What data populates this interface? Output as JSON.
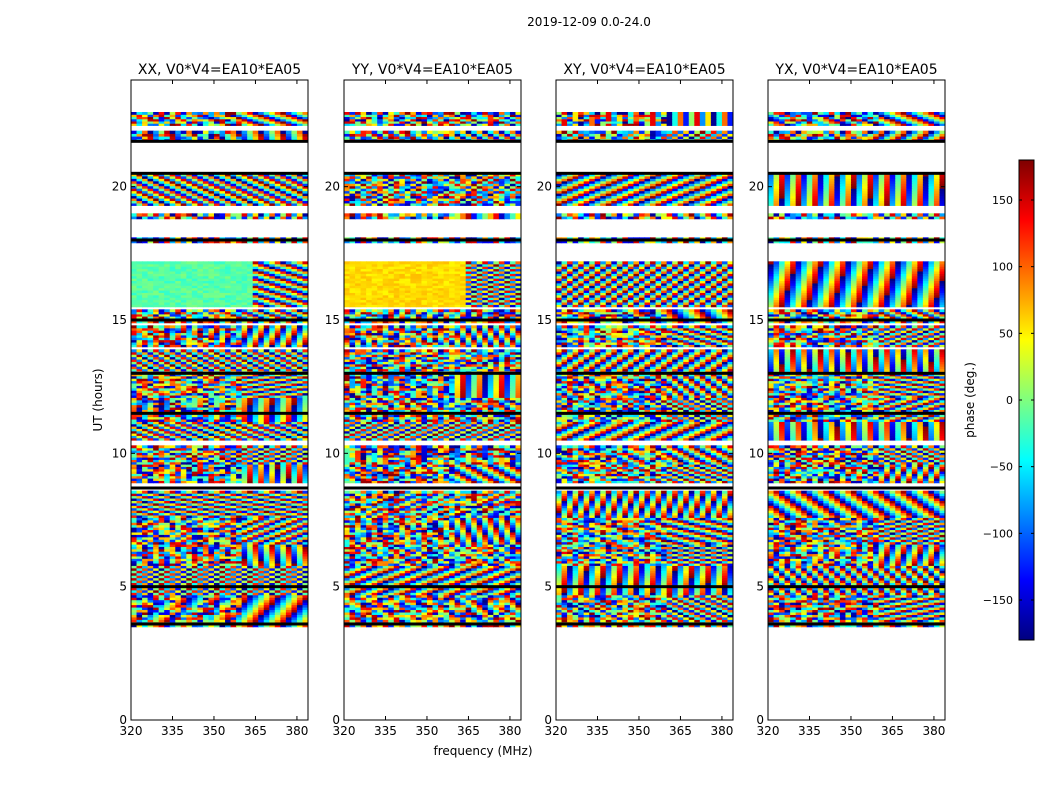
{
  "figure": {
    "suptitle": "2019-12-09 0.0-24.0",
    "xlabel": "frequency (MHz)",
    "ylabel": "UT (hours)",
    "colorbar_label": "phase (deg.)",
    "colorbar_ticks": [
      150,
      100,
      50,
      0,
      -50,
      -100,
      -150
    ],
    "colorbar_tick_labels": [
      "150",
      "100",
      "50",
      "0",
      "−50",
      "−100",
      "−150"
    ],
    "colorbar_range": [
      -180,
      180
    ],
    "colormap": "jet",
    "colormap_stops": [
      "#00007f",
      "#0000ff",
      "#007fff",
      "#00ffff",
      "#7fff7f",
      "#ffff00",
      "#ff7f00",
      "#ff0000",
      "#7f0000"
    ],
    "panel_titles": [
      "XX, V0*V4=EA10*EA05",
      "YY, V0*V4=EA10*EA05",
      "XY, V0*V4=EA10*EA05",
      "YX, V0*V4=EA10*EA05"
    ]
  },
  "chart_data": {
    "type": "heatmap",
    "title": "2019-12-09 0.0-24.0",
    "xlabel": "frequency (MHz)",
    "ylabel": "UT (hours)",
    "xlim": [
      320,
      384
    ],
    "ylim": [
      0,
      24
    ],
    "x_ticks": [
      320,
      335,
      350,
      365,
      380
    ],
    "x_tick_labels": [
      "320",
      "335",
      "350",
      "365",
      "380"
    ],
    "y_ticks": [
      0,
      5,
      10,
      15,
      20
    ],
    "y_tick_labels": [
      "0",
      "5",
      "10",
      "15",
      "20"
    ],
    "value_label": "phase (deg.)",
    "value_range": [
      -180,
      180
    ],
    "data_time_bands_hours": [
      [
        3.5,
        4.7
      ],
      [
        4.7,
        5.8
      ],
      [
        5.8,
        6.6
      ],
      [
        6.6,
        7.6
      ],
      [
        7.6,
        8.6
      ],
      [
        8.9,
        9.6
      ],
      [
        9.6,
        10.3
      ],
      [
        10.5,
        11.2
      ],
      [
        11.2,
        12.1
      ],
      [
        12.1,
        13.0
      ],
      [
        13.0,
        13.9
      ],
      [
        14.0,
        14.8
      ],
      [
        14.9,
        15.4
      ],
      [
        15.5,
        17.2
      ],
      [
        17.9,
        18.1
      ],
      [
        18.8,
        19.0
      ],
      [
        19.3,
        20.5
      ],
      [
        21.7,
        22.1
      ],
      [
        22.3,
        22.8
      ]
    ],
    "flagged_time_lines_hours": [
      8.7,
      20.5,
      18.0,
      15.0,
      13.0,
      11.5,
      5.0,
      3.6,
      21.7
    ],
    "panels": [
      {
        "name": "XX, V0*V4=EA10*EA05"
      },
      {
        "name": "YY, V0*V4=EA10*EA05"
      },
      {
        "name": "XY, V0*V4=EA10*EA05"
      },
      {
        "name": "YX, V0*V4=EA10*EA05"
      }
    ]
  }
}
